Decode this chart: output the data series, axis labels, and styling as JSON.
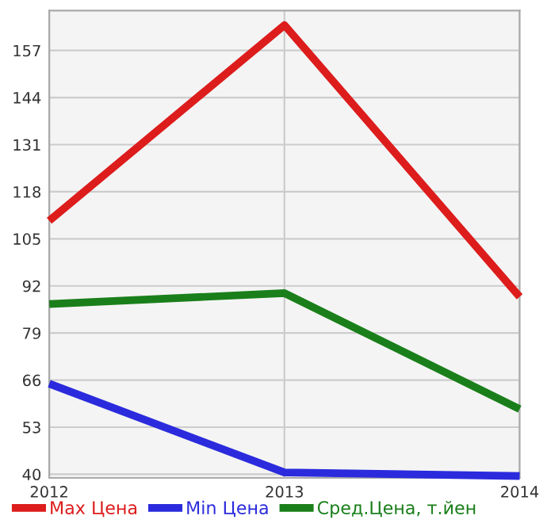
{
  "chart_data": {
    "type": "line",
    "x": [
      2012,
      2013,
      2014
    ],
    "series": [
      {
        "name": "Max Цена",
        "color": "#dd1c1c",
        "values": [
          110,
          164,
          89
        ]
      },
      {
        "name": "Min Цена",
        "color": "#2b2bdd",
        "values": [
          65,
          40.5,
          39.5
        ]
      },
      {
        "name": "Сред.Цена, т.йен",
        "color": "#1a7f1a",
        "values": [
          87,
          90,
          58
        ]
      }
    ],
    "xlim": [
      2012,
      2014
    ],
    "xticks": [
      2012,
      2013,
      2014
    ],
    "ylim": [
      39,
      168
    ],
    "yticks": [
      40,
      53,
      66,
      79,
      92,
      105,
      118,
      131,
      144,
      157
    ],
    "grid": true,
    "legend": "bottom",
    "marker": "none",
    "line_style": "solid"
  }
}
